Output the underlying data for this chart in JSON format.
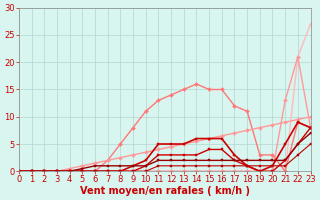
{
  "title": "",
  "xlabel": "Vent moyen/en rafales ( km/h )",
  "ylabel": "",
  "background_color": "#d8f5f0",
  "grid_color": "#b0d8d0",
  "xlim": [
    0,
    23
  ],
  "ylim": [
    0,
    30
  ],
  "xticks": [
    0,
    1,
    2,
    3,
    4,
    5,
    6,
    7,
    8,
    9,
    10,
    11,
    12,
    13,
    14,
    15,
    16,
    17,
    18,
    19,
    20,
    21,
    22,
    23
  ],
  "yticks": [
    0,
    5,
    10,
    15,
    20,
    25,
    30
  ],
  "lines": [
    {
      "comment": "lightest pink - nearly straight diagonal to top right",
      "color": "#ffbbbb",
      "linewidth": 1.0,
      "marker": "D",
      "markersize": 2,
      "x": [
        0,
        1,
        2,
        3,
        4,
        5,
        6,
        7,
        8,
        9,
        10,
        11,
        12,
        13,
        14,
        15,
        16,
        17,
        18,
        19,
        20,
        21,
        22,
        23
      ],
      "y": [
        0,
        0,
        0,
        0,
        0,
        0,
        0,
        0,
        0,
        0,
        0,
        0,
        0,
        0,
        0,
        0,
        0,
        0,
        0,
        0,
        0,
        0,
        21,
        27
      ]
    },
    {
      "comment": "light pink - goes up then drops",
      "color": "#ff9999",
      "linewidth": 1.0,
      "marker": "D",
      "markersize": 2,
      "x": [
        0,
        1,
        2,
        3,
        4,
        5,
        6,
        7,
        8,
        9,
        10,
        11,
        12,
        13,
        14,
        15,
        16,
        17,
        18,
        19,
        20,
        21,
        22,
        23
      ],
      "y": [
        0,
        0,
        0,
        0,
        0,
        0,
        0,
        0,
        0,
        0,
        0,
        0,
        0,
        0,
        0,
        0,
        0,
        0,
        0,
        0,
        0,
        13,
        21,
        8
      ]
    },
    {
      "comment": "medium pink - peak around x=14-16",
      "color": "#ff7777",
      "linewidth": 1.0,
      "marker": "D",
      "markersize": 2,
      "x": [
        0,
        1,
        2,
        3,
        4,
        5,
        6,
        7,
        8,
        9,
        10,
        11,
        12,
        13,
        14,
        15,
        16,
        17,
        18,
        19,
        20,
        21,
        22,
        23
      ],
      "y": [
        0,
        0,
        0,
        0,
        0,
        0,
        0,
        2,
        5,
        8,
        11,
        13,
        14,
        15,
        16,
        15,
        15,
        12,
        11,
        3,
        3,
        0,
        9,
        8
      ]
    },
    {
      "comment": "darker pink straight diagonal",
      "color": "#ff9999",
      "linewidth": 1.0,
      "marker": "D",
      "markersize": 2,
      "x": [
        0,
        1,
        2,
        3,
        4,
        5,
        6,
        7,
        8,
        9,
        10,
        11,
        12,
        13,
        14,
        15,
        16,
        17,
        18,
        19,
        20,
        21,
        22,
        23
      ],
      "y": [
        0,
        0,
        0,
        0,
        0.5,
        1,
        1.5,
        2,
        2.5,
        3,
        3.5,
        4,
        4.5,
        5,
        5.5,
        6,
        6.5,
        7,
        7.5,
        8,
        8.5,
        9,
        9.5,
        10
      ]
    },
    {
      "comment": "dark red - main data line with markers",
      "color": "#cc0000",
      "linewidth": 1.2,
      "marker": "s",
      "markersize": 2,
      "x": [
        0,
        1,
        2,
        3,
        4,
        5,
        6,
        7,
        8,
        9,
        10,
        11,
        12,
        13,
        14,
        15,
        16,
        17,
        18,
        19,
        20,
        21,
        22,
        23
      ],
      "y": [
        0,
        0,
        0,
        0,
        0,
        0,
        0,
        0,
        0,
        1,
        2,
        5,
        5,
        5,
        6,
        6,
        6,
        3,
        1,
        0,
        1,
        5,
        9,
        8
      ]
    },
    {
      "comment": "dark red lower",
      "color": "#cc0000",
      "linewidth": 1.0,
      "marker": "s",
      "markersize": 2,
      "x": [
        0,
        1,
        2,
        3,
        4,
        5,
        6,
        7,
        8,
        9,
        10,
        11,
        12,
        13,
        14,
        15,
        16,
        17,
        18,
        19,
        20,
        21,
        22,
        23
      ],
      "y": [
        0,
        0,
        0,
        0,
        0,
        0,
        0,
        0,
        0,
        0,
        1,
        3,
        3,
        3,
        3,
        4,
        4,
        2,
        1,
        0,
        0,
        2,
        5,
        8
      ]
    },
    {
      "comment": "darkest red - very low",
      "color": "#990000",
      "linewidth": 1.0,
      "marker": "s",
      "markersize": 2,
      "x": [
        0,
        1,
        2,
        3,
        4,
        5,
        6,
        7,
        8,
        9,
        10,
        11,
        12,
        13,
        14,
        15,
        16,
        17,
        18,
        19,
        20,
        21,
        22,
        23
      ],
      "y": [
        0,
        0,
        0,
        0,
        0,
        0.5,
        1,
        1,
        1,
        1,
        1,
        2,
        2,
        2,
        2,
        2,
        2,
        2,
        2,
        2,
        2,
        2,
        5,
        7
      ]
    },
    {
      "comment": "near zero dark red",
      "color": "#bb0000",
      "linewidth": 0.8,
      "marker": "s",
      "markersize": 2,
      "x": [
        0,
        1,
        2,
        3,
        4,
        5,
        6,
        7,
        8,
        9,
        10,
        11,
        12,
        13,
        14,
        15,
        16,
        17,
        18,
        19,
        20,
        21,
        22,
        23
      ],
      "y": [
        0,
        0,
        0,
        0,
        0,
        0,
        0,
        0,
        0,
        0,
        0,
        1,
        1,
        1,
        1,
        1,
        1,
        1,
        1,
        1,
        1,
        1,
        3,
        5
      ]
    }
  ],
  "xlabel_color": "#cc0000",
  "xlabel_fontsize": 7,
  "tick_fontsize": 6,
  "tick_color": "#cc0000"
}
